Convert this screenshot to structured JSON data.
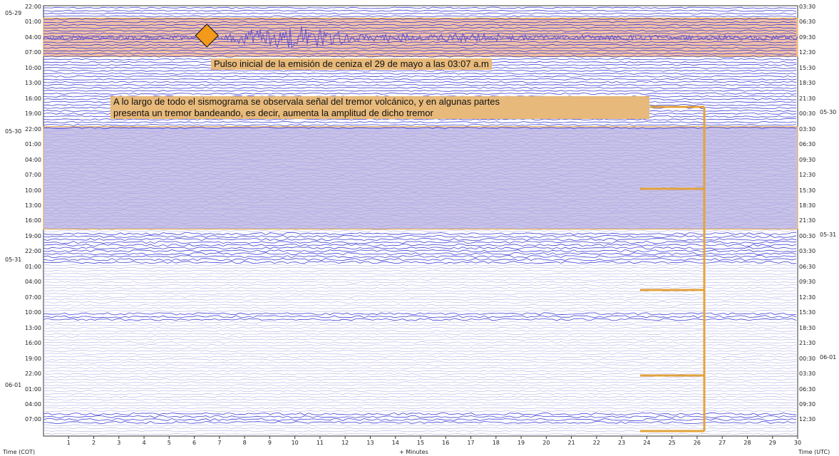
{
  "chart_data": {
    "type": "heatmap",
    "title": "",
    "x_axis": {
      "label": "+ Minutes",
      "range": [
        0,
        30
      ],
      "ticks": [
        "1",
        "2",
        "3",
        "4",
        "5",
        "6",
        "7",
        "8",
        "9",
        "10",
        "11",
        "12",
        "13",
        "14",
        "15",
        "16",
        "17",
        "18",
        "19",
        "20",
        "21",
        "22",
        "23",
        "24",
        "25",
        "26",
        "27",
        "28",
        "29",
        "30"
      ]
    },
    "y_axis_left": {
      "label": "Time (COT)",
      "ticks": [
        "22:00",
        "01:00",
        "04:00",
        "07:00",
        "10:00",
        "13:00",
        "16:00",
        "19:00",
        "22:00",
        "01:00",
        "04:00",
        "07:00",
        "10:00",
        "13:00",
        "16:00",
        "19:00",
        "22:00",
        "01:00",
        "04:00",
        "07:00",
        "10:00",
        "13:00",
        "16:00",
        "19:00",
        "22:00",
        "01:00",
        "04:00",
        "07:00"
      ],
      "dates": [
        "05-29",
        "05-30",
        "05-31",
        "06-01"
      ]
    },
    "y_axis_right": {
      "label": "Time (UTC)",
      "ticks": [
        "03:30",
        "06:30",
        "09:30",
        "12:30",
        "15:30",
        "18:30",
        "21:30",
        "00:30",
        "03:30",
        "06:30",
        "09:30",
        "12:30",
        "15:30",
        "18:30",
        "21:30",
        "00:30",
        "03:30",
        "06:30",
        "09:30",
        "12:30",
        "15:30",
        "18:30",
        "21:30",
        "00:30",
        "03:30",
        "06:30",
        "09:30",
        "12:30"
      ],
      "dates": [
        "05-30",
        "05-31",
        "06-01"
      ]
    },
    "highlighted_bands": [
      {
        "from": "01:00",
        "to": "07:00",
        "date": "05-29",
        "color": "#f2c2a8"
      },
      {
        "from": "22:00",
        "to": "16:00",
        "date": "05-30",
        "color": "#c8c2e8"
      }
    ],
    "event_marker": {
      "minute": 6.5,
      "time": "03:07",
      "date": "05-29",
      "shape": "diamond",
      "color": "#f39a1a"
    },
    "annotations": [
      "Pulso inicial de la emisión de ceniza el 29 de mayo a las 03:07 a.m",
      "A lo largo de todo el sismograma se observala señal del tremor volcánico, y en algunas partes",
      "presenta un tremor bandeando, es decir, aumenta la amplitud de dicho tremor"
    ],
    "colors": {
      "trace": "#2a2ad0",
      "trace_light": "#9a9ae0",
      "band": "#e3a33b",
      "marker": "#f39a1a"
    }
  }
}
